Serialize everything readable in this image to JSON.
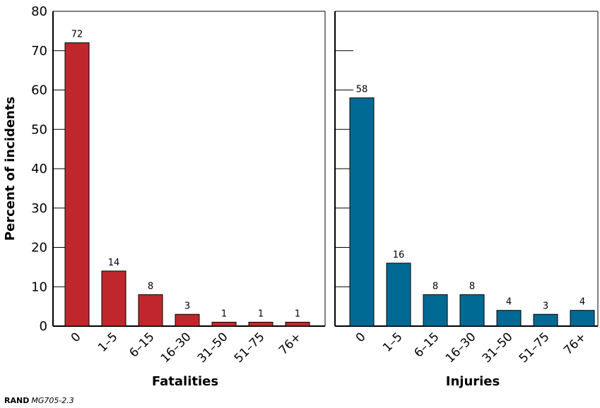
{
  "chart_data": [
    {
      "type": "bar",
      "title": "Fatalities",
      "ylabel": "Percent of incidents",
      "ylim": [
        0,
        80
      ],
      "yticks": [
        0,
        10,
        20,
        30,
        40,
        50,
        60,
        70,
        80
      ],
      "categories": [
        "0",
        "1–5",
        "6–15",
        "16–30",
        "31–50",
        "51–75",
        "76+"
      ],
      "values": [
        72,
        14,
        8,
        3,
        1,
        1,
        1
      ],
      "color": "#c0272d",
      "grid": false
    },
    {
      "type": "bar",
      "title": "Injuries",
      "ylim": [
        0,
        80
      ],
      "categories": [
        "0",
        "1–5",
        "6–15",
        "16–30",
        "31–50",
        "51–75",
        "76+"
      ],
      "values": [
        58,
        16,
        8,
        8,
        4,
        3,
        4
      ],
      "color": "#006a94",
      "grid": false
    }
  ],
  "source": {
    "org": "RAND",
    "id": "MG705-2.3"
  }
}
